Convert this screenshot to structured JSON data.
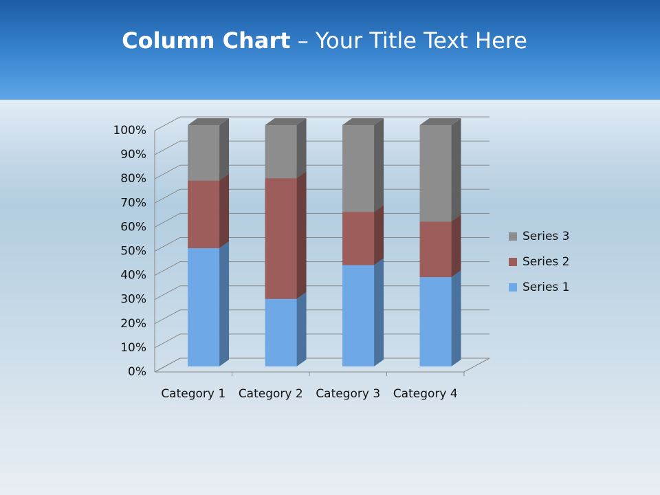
{
  "chart_data": {
    "type": "stacked_bar_3d",
    "title": {
      "bold": "Column Chart",
      "regular": "– Your Title Text Here"
    },
    "categories": [
      "Category 1",
      "Category 2",
      "Category 3",
      "Category 4"
    ],
    "series": [
      {
        "name": "Series 1",
        "color": "#6ea8e6",
        "values": [
          49,
          28,
          42,
          37
        ]
      },
      {
        "name": "Series 2",
        "color": "#9c5d5b",
        "values": [
          28,
          50,
          22,
          23
        ]
      },
      {
        "name": "Series 3",
        "color": "#8d8d8d",
        "values": [
          23,
          22,
          36,
          40
        ]
      }
    ],
    "ylim": [
      0,
      100
    ],
    "yticks": [
      {
        "value": 0,
        "label": "0%"
      },
      {
        "value": 10,
        "label": "10%"
      },
      {
        "value": 20,
        "label": "20%"
      },
      {
        "value": 30,
        "label": "30%"
      },
      {
        "value": 40,
        "label": "40%"
      },
      {
        "value": 50,
        "label": "50%"
      },
      {
        "value": 60,
        "label": "60%"
      },
      {
        "value": 70,
        "label": "70%"
      },
      {
        "value": 80,
        "label": "80%"
      },
      {
        "value": 90,
        "label": "90%"
      },
      {
        "value": 100,
        "label": "100%"
      }
    ],
    "grid": true,
    "legend": "right"
  }
}
